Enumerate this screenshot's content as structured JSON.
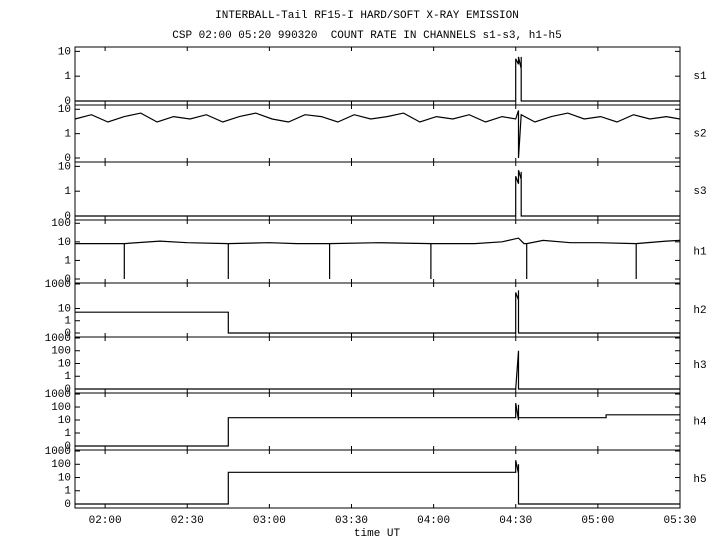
{
  "header": {
    "title": "INTERBALL-Tail RF15-I HARD/SOFT X-RAY EMISSION",
    "subtitle": "CSP 02:00 05:20 990320  COUNT RATE IN CHANNELS s1-s3, h1-h5"
  },
  "x_axis": {
    "label": "time UT",
    "xlim": [
      "01:49",
      "05:30"
    ],
    "xticks": [
      "02:00",
      "02:30",
      "03:00",
      "03:30",
      "04:00",
      "04:30",
      "05:00",
      "05:30"
    ]
  },
  "chart_data": [
    {
      "type": "line",
      "name": "s1",
      "yscale": "log",
      "color": "#000000",
      "ylim": [
        0,
        15
      ],
      "yticks": [
        0,
        1,
        10
      ],
      "x": [
        "01:49",
        "04:30",
        "04:30",
        "04:31",
        "04:31",
        "04:32",
        "04:32",
        "04:32",
        "05:30"
      ],
      "values": [
        0,
        0,
        5,
        3,
        6,
        2,
        6,
        0,
        0
      ]
    },
    {
      "type": "line",
      "name": "s2",
      "yscale": "log",
      "color": "#000000",
      "ylim": [
        0,
        15
      ],
      "yticks": [
        0,
        1,
        10
      ],
      "x": [
        "01:49",
        "01:55",
        "02:01",
        "02:07",
        "02:13",
        "02:19",
        "02:25",
        "02:31",
        "02:37",
        "02:43",
        "02:49",
        "02:55",
        "03:01",
        "03:07",
        "03:13",
        "03:19",
        "03:25",
        "03:31",
        "03:37",
        "03:43",
        "03:49",
        "03:55",
        "04:01",
        "04:07",
        "04:13",
        "04:19",
        "04:25",
        "04:30",
        "04:31",
        "04:31",
        "04:32",
        "04:37",
        "04:43",
        "04:49",
        "04:55",
        "05:01",
        "05:07",
        "05:13",
        "05:19",
        "05:25",
        "05:30"
      ],
      "values": [
        4,
        6,
        3,
        5,
        7,
        3,
        5,
        4,
        6,
        3,
        5,
        7,
        4,
        3,
        6,
        5,
        3,
        6,
        4,
        5,
        7,
        3,
        5,
        4,
        6,
        3,
        5,
        4,
        9,
        0,
        6,
        3,
        5,
        7,
        4,
        5,
        3,
        6,
        4,
        5,
        4
      ]
    },
    {
      "type": "line",
      "name": "s3",
      "yscale": "log",
      "color": "#000000",
      "ylim": [
        0,
        15
      ],
      "yticks": [
        0,
        1,
        10
      ],
      "x": [
        "01:49",
        "04:30",
        "04:30",
        "04:31",
        "04:31",
        "04:32",
        "04:32",
        "04:32",
        "05:30"
      ],
      "values": [
        0,
        0,
        4,
        2,
        7,
        3,
        6,
        0,
        0
      ]
    },
    {
      "type": "line",
      "name": "h1",
      "yscale": "log",
      "color": "#000000",
      "ylim": [
        0,
        150
      ],
      "yticks": [
        0,
        1,
        10,
        100
      ],
      "x": [
        "01:49",
        "02:00",
        "02:07",
        "02:07",
        "02:07",
        "02:20",
        "02:30",
        "02:45",
        "02:45",
        "02:45",
        "03:00",
        "03:10",
        "03:22",
        "03:22",
        "03:22",
        "03:40",
        "03:59",
        "03:59",
        "03:59",
        "04:15",
        "04:25",
        "04:31",
        "04:33",
        "04:34",
        "04:34",
        "04:34",
        "04:40",
        "04:50",
        "05:00",
        "05:14",
        "05:14",
        "05:14",
        "05:25",
        "05:30"
      ],
      "values": [
        8,
        8,
        8,
        0,
        8,
        11,
        9,
        8,
        0,
        8,
        9,
        8,
        8,
        0,
        8,
        9,
        8,
        0,
        8,
        8,
        10,
        16,
        8,
        8,
        0,
        8,
        12,
        9,
        9,
        8,
        0,
        8,
        11,
        12
      ]
    },
    {
      "type": "line",
      "name": "h2",
      "yscale": "log",
      "color": "#000000",
      "ylim": [
        0,
        1200
      ],
      "yticks": [
        0,
        1,
        10,
        1000
      ],
      "x": [
        "01:49",
        "02:45",
        "02:45",
        "04:30",
        "04:30",
        "04:31",
        "04:31",
        "04:31",
        "05:30"
      ],
      "values": [
        5,
        5,
        0,
        0,
        200,
        50,
        300,
        0,
        0
      ]
    },
    {
      "type": "line",
      "name": "h3",
      "yscale": "log",
      "color": "#000000",
      "ylim": [
        0,
        1200
      ],
      "yticks": [
        0,
        1,
        10,
        100,
        1000
      ],
      "x": [
        "01:49",
        "04:30",
        "04:31",
        "04:31",
        "05:30"
      ],
      "values": [
        0,
        0,
        100,
        0,
        0
      ]
    },
    {
      "type": "line",
      "name": "h4",
      "yscale": "log",
      "color": "#000000",
      "ylim": [
        0,
        1200
      ],
      "yticks": [
        0,
        1,
        10,
        100,
        1000
      ],
      "x": [
        "01:49",
        "02:45",
        "02:45",
        "04:30",
        "04:30",
        "04:31",
        "04:31",
        "04:31",
        "05:03",
        "05:03",
        "05:30"
      ],
      "values": [
        0,
        0,
        15,
        15,
        200,
        10,
        150,
        15,
        15,
        25,
        25
      ]
    },
    {
      "type": "line",
      "name": "h5",
      "yscale": "log",
      "color": "#000000",
      "ylim": [
        0,
        1200
      ],
      "yticks": [
        0,
        1,
        10,
        100,
        1000
      ],
      "x": [
        "01:49",
        "02:45",
        "02:45",
        "04:30",
        "04:30",
        "04:31",
        "04:31",
        "04:31",
        "05:30"
      ],
      "values": [
        0,
        0,
        25,
        25,
        200,
        20,
        100,
        0,
        0
      ]
    }
  ]
}
